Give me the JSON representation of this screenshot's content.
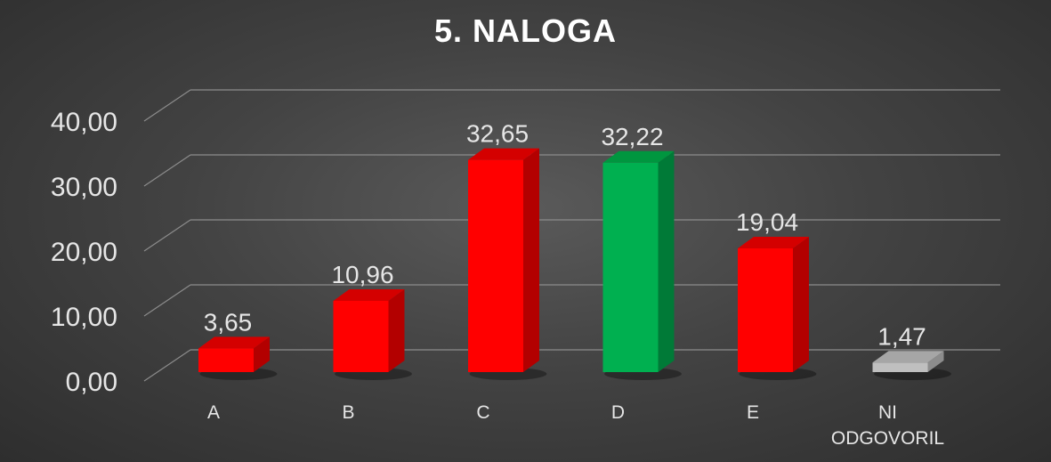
{
  "chart_data": {
    "type": "bar",
    "title": "5. NALOGA",
    "categories": [
      "A",
      "B",
      "C",
      "D",
      "E",
      "NI ODGOVORIL"
    ],
    "values": [
      3.65,
      10.96,
      32.65,
      32.22,
      19.04,
      1.47
    ],
    "value_labels": [
      "3,65",
      "10,96",
      "32,65",
      "32,22",
      "19,04",
      "1,47"
    ],
    "y_ticks": [
      "0,00",
      "10,00",
      "20,00",
      "30,00",
      "40,00"
    ],
    "y_tick_values": [
      0,
      10,
      20,
      30,
      40
    ],
    "ylim": [
      0,
      40
    ],
    "grid": true,
    "bar_colors": [
      "#ff0000",
      "#ff0000",
      "#ff0000",
      "#00b050",
      "#ff0000",
      "#bfbfbf"
    ],
    "bar_side_colors": [
      "#b30000",
      "#b30000",
      "#b30000",
      "#007a37",
      "#b30000",
      "#8c8c8c"
    ],
    "bar_top_colors": [
      "#d40000",
      "#d40000",
      "#d40000",
      "#00963f",
      "#d40000",
      "#a6a6a6"
    ],
    "style": "3d-column",
    "background": "#3a3a3a",
    "gridline_color": "#8c8c8c",
    "text_color": "#e6e6e6"
  }
}
